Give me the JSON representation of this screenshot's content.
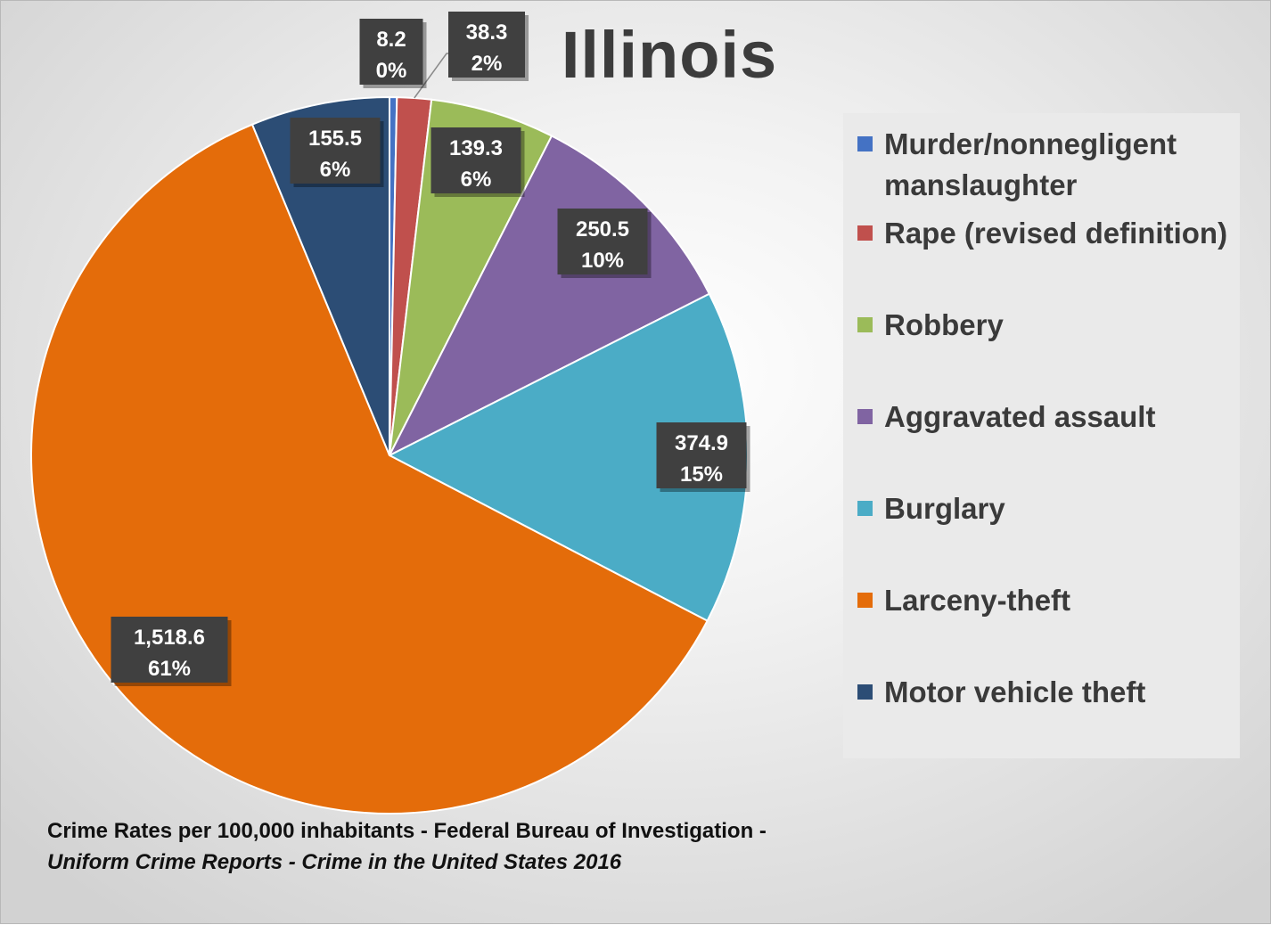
{
  "chart_data": {
    "type": "pie",
    "title": "Illinois",
    "categories": [
      "Murder/nonnegligent manslaughter",
      "Rape (revised definition)",
      "Robbery",
      "Aggravated assault",
      "Burglary",
      "Larceny-theft",
      "Motor vehicle theft"
    ],
    "values": [
      8.2,
      38.3,
      139.3,
      250.5,
      374.9,
      1518.6,
      155.5
    ],
    "value_labels": [
      "8.2",
      "38.3",
      "139.3",
      "250.5",
      "374.9",
      "1,518.6",
      "155.5"
    ],
    "percent_labels": [
      "0%",
      "2%",
      "6%",
      "10%",
      "15%",
      "61%",
      "6%"
    ],
    "colors": [
      "#4472c4",
      "#c0504d",
      "#9bbb59",
      "#8064a2",
      "#4bacc6",
      "#e46c0a",
      "#2c4d75"
    ],
    "legend_position": "right"
  },
  "source": {
    "part1": "Crime Rates per 100,000 inhabitants - Federal Bureau of Investigation - ",
    "part2": "Uniform Crime Reports - Crime in the United States 2016"
  }
}
